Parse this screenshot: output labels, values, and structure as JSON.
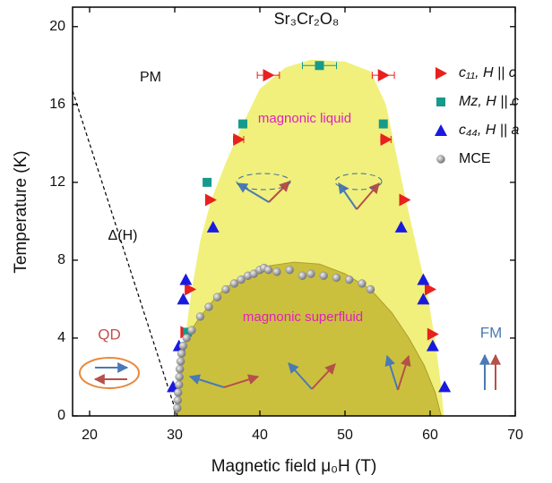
{
  "chart_data": {
    "type": "scatter",
    "title": "Sr₃Cr₂O₈",
    "x_label": "Magnetic field μ₀H (T)",
    "y_label": "Temperature (K)",
    "xlim": [
      18,
      70
    ],
    "ylim": [
      0,
      21
    ],
    "xticks": [
      20,
      30,
      40,
      50,
      60,
      70
    ],
    "yticks": [
      0,
      4,
      8,
      12,
      16,
      20
    ],
    "legend": "upper right",
    "annotations": {
      "pm": "PM",
      "liquid": "magnonic liquid",
      "superfluid": "magnonic superfluid",
      "qd": "QD",
      "fm": "FM",
      "gap": "Δ(H)"
    },
    "series": [
      {
        "name": "c₁₁,  H || c",
        "color": "#e8201e",
        "marker": "triangle-right",
        "x": [
          41,
          54.5,
          37.5,
          54.8,
          34.2,
          57,
          31.8,
          60,
          31.3,
          60.3
        ],
        "values": [
          17.5,
          17.5,
          14.2,
          14.2,
          11.1,
          11.1,
          6.5,
          6.5,
          4.3,
          4.2
        ],
        "xerr": [
          1.3,
          1.3,
          0.6,
          0.6,
          null,
          null,
          null,
          null,
          null,
          null
        ]
      },
      {
        "name": "Mz,  H || c",
        "color": "#159a8c",
        "marker": "square",
        "x": [
          47,
          38,
          54.5,
          33.8,
          31.5
        ],
        "values": [
          18,
          15,
          15,
          12,
          4.3
        ],
        "xerr": [
          2,
          null,
          null,
          null,
          null
        ]
      },
      {
        "name": "c₄₄,  H || a",
        "color": "#1a1adf",
        "marker": "triangle-up",
        "x": [
          34.5,
          56.6,
          31.3,
          59.2,
          31,
          59.2,
          30.5,
          60.3,
          29.8,
          61.7
        ],
        "values": [
          9.7,
          9.7,
          7,
          7,
          6,
          6,
          3.6,
          3.6,
          1.5,
          1.5
        ]
      },
      {
        "name": "MCE",
        "color": "#8a8a8a",
        "marker": "circle",
        "x": [
          30.3,
          30.35,
          30.4,
          30.5,
          30.55,
          30.6,
          30.7,
          30.8,
          31,
          31.4,
          32,
          33,
          34,
          35,
          36,
          37,
          37.8,
          38.6,
          39.3,
          40,
          40.5,
          41,
          42,
          43.5,
          45,
          46,
          47.5,
          49,
          50.5,
          52,
          53
        ],
        "values": [
          0.4,
          0.8,
          1.2,
          1.6,
          2.0,
          2.4,
          2.8,
          3.2,
          3.6,
          4.0,
          4.4,
          5.1,
          5.6,
          6.1,
          6.5,
          6.8,
          7.0,
          7.2,
          7.3,
          7.5,
          7.6,
          7.5,
          7.4,
          7.5,
          7.2,
          7.3,
          7.2,
          7.1,
          7.0,
          6.8,
          6.5
        ]
      }
    ]
  }
}
